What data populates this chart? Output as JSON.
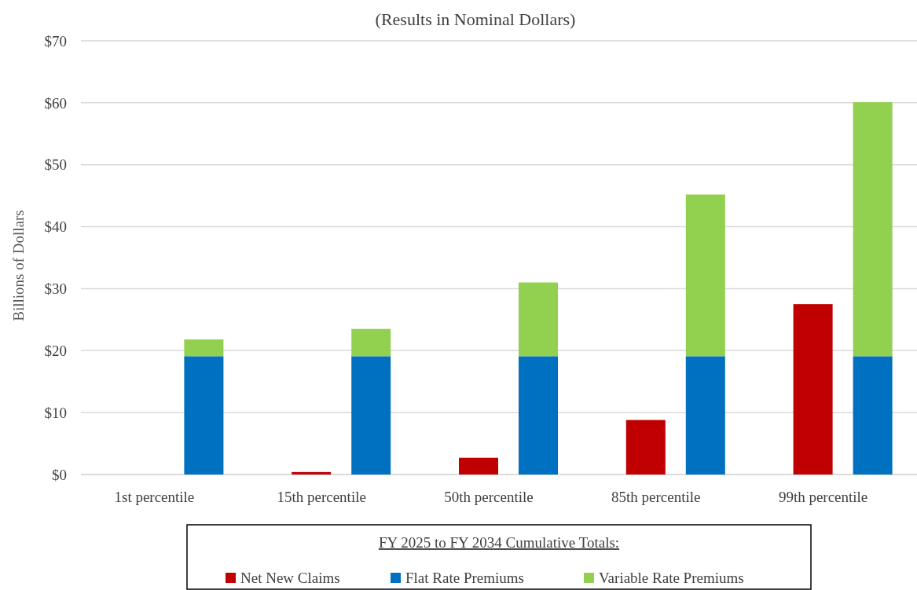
{
  "chart_data": {
    "type": "bar",
    "title": "(Results in Nominal Dollars)",
    "ylabel": "Billions of Dollars",
    "legend_title": "FY 2025 to FY 2034 Cumulative Totals:",
    "categories": [
      "1st percentile",
      null,
      "15th percentile",
      null,
      "50th percentile",
      null,
      "85th percentile",
      null,
      "99th percentile",
      null
    ],
    "stacked": true,
    "series": [
      {
        "name": "Net New Claims",
        "color": "#c00000",
        "values": [
          0,
          null,
          0.4,
          null,
          2.7,
          null,
          8.8,
          null,
          27.5,
          null
        ]
      },
      {
        "name": "Flat Rate Premiums",
        "color": "#0070c0",
        "values": [
          null,
          19.1,
          null,
          19.1,
          null,
          19.1,
          null,
          19.1,
          null,
          19.1
        ]
      },
      {
        "name": "Variable Rate Premiums",
        "color": "#92d050",
        "values": [
          null,
          2.7,
          null,
          4.4,
          null,
          11.9,
          null,
          26.1,
          null,
          41
        ]
      }
    ],
    "ylim": [
      0,
      70
    ],
    "yticks": [
      {
        "value": 0,
        "label": "$0"
      },
      {
        "value": 10,
        "label": "$10"
      },
      {
        "value": 20,
        "label": "$20"
      },
      {
        "value": 30,
        "label": "$30"
      },
      {
        "value": 40,
        "label": "$40"
      },
      {
        "value": 50,
        "label": "$50"
      },
      {
        "value": 60,
        "label": "$60"
      },
      {
        "value": 70,
        "label": "$70"
      }
    ],
    "grid": "y",
    "legend": "bottom"
  }
}
